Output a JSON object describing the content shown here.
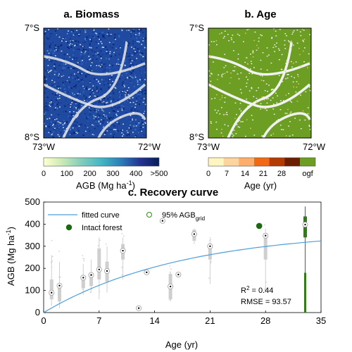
{
  "panels": {
    "a": {
      "title": "a. Biomass",
      "lat_top": "7°S",
      "lat_bottom": "8°S",
      "lon_left": "73°W",
      "lon_right": "72°W",
      "colorbar_ticks": [
        "0",
        "100",
        "200",
        "300",
        "400",
        ">500"
      ],
      "colorbar_label": "AGB (Mg ha",
      "colorbar_label_sup": "-1",
      "colorbar_label_end": ")",
      "colors": [
        "#ffffd0",
        "#c7e9b4",
        "#7fcdbb",
        "#41b6c4",
        "#2c7fb8",
        "#253494",
        "#081d58"
      ]
    },
    "b": {
      "title": "b. Age",
      "lat_top": "7°S",
      "lat_bottom": "8°S",
      "lon_left": "73°W",
      "lon_right": "72°W",
      "colorbar_ticks": [
        "0",
        "7",
        "14",
        "21",
        "28",
        "ogf"
      ],
      "colorbar_label": "Age (yr)",
      "colors": [
        "#fff5c0",
        "#fdd49e",
        "#fdae6b",
        "#f16913",
        "#b33a00",
        "#6b1f00"
      ],
      "ogf_color": "#6b9e23"
    }
  },
  "chart_data": {
    "type": "scatter",
    "title": "c. Recovery curve",
    "xlabel": "Age (yr)",
    "ylabel": "AGB (Mg ha",
    "ylabel_sup": "-1",
    "ylabel_end": ")",
    "xlim": [
      0,
      35
    ],
    "ylim": [
      0,
      500
    ],
    "xticks": [
      0,
      7,
      14,
      21,
      28,
      35
    ],
    "yticks": [
      0,
      100,
      200,
      300,
      400,
      500
    ],
    "legend": {
      "fitted": "fitted curve",
      "intact": "Intact forest",
      "grid_prefix": "95% AGB",
      "grid_sub": "grid"
    },
    "stats": {
      "r2_label": "R",
      "r2_sup": "2",
      "r2_value": " = 0.44",
      "rmse": "RMSE = 93.57"
    },
    "fitted_curve": {
      "asymptote": 375,
      "rate": 0.057
    },
    "intact_forest": {
      "x": 27.2,
      "y": 392
    },
    "points": [
      {
        "x": 1,
        "y": 90
      },
      {
        "x": 2,
        "y": 122
      },
      {
        "x": 5,
        "y": 158
      },
      {
        "x": 6,
        "y": 170
      },
      {
        "x": 7,
        "y": 195
      },
      {
        "x": 8,
        "y": 188
      },
      {
        "x": 10,
        "y": 280
      },
      {
        "x": 12,
        "y": 20
      },
      {
        "x": 13,
        "y": 182
      },
      {
        "x": 15,
        "y": 415
      },
      {
        "x": 16,
        "y": 118
      },
      {
        "x": 17,
        "y": 172
      },
      {
        "x": 19,
        "y": 355
      },
      {
        "x": 21,
        "y": 300
      },
      {
        "x": 28,
        "y": 348
      },
      {
        "x": 33,
        "y": 398
      }
    ],
    "boxes": [
      {
        "x": 1,
        "q1": 60,
        "q3": 150,
        "lo": 30,
        "hi": 260
      },
      {
        "x": 2,
        "q1": 50,
        "q3": 120,
        "lo": 20,
        "hi": 230
      },
      {
        "x": 5,
        "q1": 110,
        "q3": 160,
        "lo": 80,
        "hi": 220
      },
      {
        "x": 6,
        "q1": 120,
        "q3": 175,
        "lo": 90,
        "hi": 240
      },
      {
        "x": 7,
        "q1": 150,
        "q3": 290,
        "lo": 60,
        "hi": 340
      },
      {
        "x": 8,
        "q1": 140,
        "q3": 230,
        "lo": 90,
        "hi": 300
      },
      {
        "x": 10,
        "q1": 240,
        "q3": 310,
        "lo": 150,
        "hi": 340
      },
      {
        "x": 16,
        "q1": 60,
        "q3": 175,
        "lo": 50,
        "hi": 185
      },
      {
        "x": 19,
        "q1": 325,
        "q3": 375,
        "lo": 310,
        "hi": 380
      },
      {
        "x": 21,
        "q1": 240,
        "q3": 310,
        "lo": 130,
        "hi": 330
      },
      {
        "x": 28,
        "q1": 240,
        "q3": 350,
        "lo": 90,
        "hi": 380
      }
    ],
    "ogf_box": {
      "x": 33,
      "q1": 340,
      "q3": 435,
      "lo": 0,
      "hi": 480,
      "color": "#2e7d16"
    },
    "colors": {
      "points": "#c8c8c8",
      "curve": "#4a9fd8",
      "intact": "#1a6b0f",
      "grid_marker": "#2e8b1a"
    }
  }
}
